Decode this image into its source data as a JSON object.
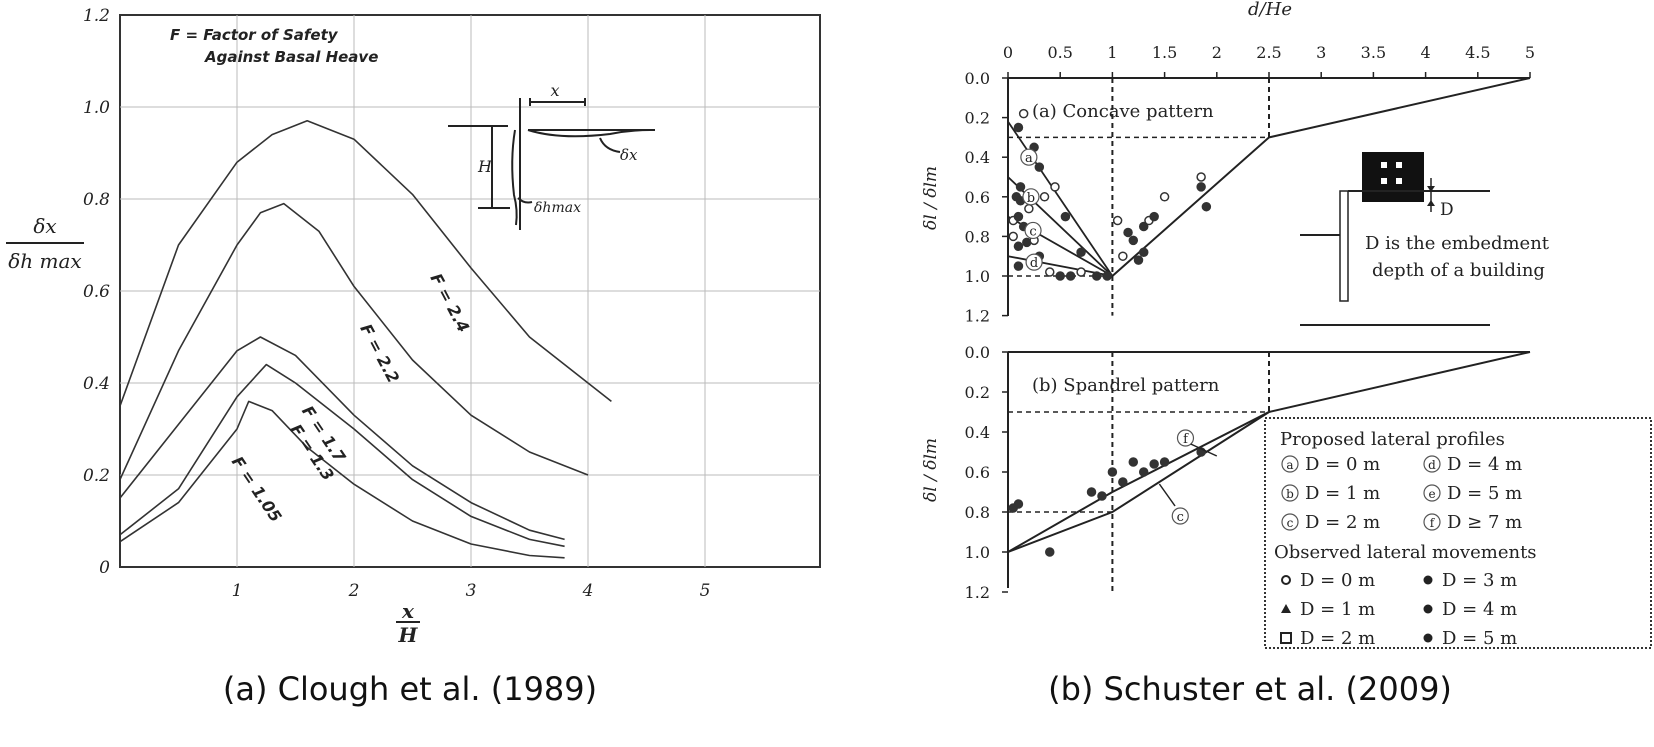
{
  "left_panel": {
    "caption": "(a) Clough et al. (1989)",
    "legend_line1": "F = Factor of Safety",
    "legend_line2": "Against Basal Heave",
    "ylabel_num": "δx",
    "ylabel_den": "δh max",
    "xlabel_num": "x",
    "xlabel_den": "H",
    "inset_x": "x",
    "inset_H": "H",
    "inset_dx": "δx",
    "inset_dhmax": "δhmax",
    "y_ticks": [
      "0",
      "0.2",
      "0.4",
      "0.6",
      "0.8",
      "1.0",
      "1.2"
    ],
    "x_ticks": [
      "1",
      "2",
      "3",
      "4",
      "5"
    ]
  },
  "right_panel": {
    "caption": "(b) Schuster et al. (2009)",
    "top_axis_title": "d/He",
    "top_x_ticks": [
      "0",
      "0.5",
      "1",
      "1.5",
      "2",
      "2.5",
      "3",
      "3.5",
      "4",
      "4.5",
      "5"
    ],
    "y_ticks": [
      "0.0",
      "0.2",
      "0.4",
      "0.6",
      "0.8",
      "1.0",
      "1.2"
    ],
    "ylabel": "δl / δlm",
    "concave_label": "(a) Concave pattern",
    "spandrel_label": "(b) Spandrel pattern",
    "profile_markers": [
      "a",
      "b",
      "c",
      "d"
    ],
    "spandrel_markers": [
      "f",
      "c"
    ],
    "building_label": "D",
    "embed_line1": "D is the embedment",
    "embed_line2": "depth of a building",
    "legend": {
      "proposed_title": "Proposed lateral profiles",
      "proposed": [
        {
          "tag": "a",
          "text": "D = 0 m"
        },
        {
          "tag": "d",
          "text": "D = 4 m"
        },
        {
          "tag": "b",
          "text": "D = 1 m"
        },
        {
          "tag": "e",
          "text": "D = 5 m"
        },
        {
          "tag": "c",
          "text": "D = 2 m"
        },
        {
          "tag": "f",
          "text": "D ≥ 7 m"
        }
      ],
      "observed_title": "Observed lateral movements",
      "observed": [
        "D = 0 m",
        "D = 3 m",
        "D = 1 m",
        "D = 4 m",
        "D = 2 m",
        "D = 5 m"
      ]
    }
  },
  "chart_data": [
    {
      "type": "line",
      "xlabel": "x / H",
      "ylabel": "δx / δh max",
      "xlim": [
        0,
        5
      ],
      "ylim": [
        0,
        1.2
      ],
      "grid": true,
      "series": [
        {
          "name": "F = 2.4",
          "x": [
            0,
            0.5,
            1.0,
            1.3,
            1.6,
            2.0,
            2.5,
            3.0,
            3.5,
            4.0,
            4.2
          ],
          "y": [
            0.35,
            0.7,
            0.88,
            0.94,
            0.97,
            0.93,
            0.81,
            0.65,
            0.5,
            0.4,
            0.36
          ]
        },
        {
          "name": "F = 2.2",
          "x": [
            0,
            0.5,
            1.0,
            1.2,
            1.4,
            1.7,
            2.0,
            2.5,
            3.0,
            3.5,
            4.0
          ],
          "y": [
            0.19,
            0.47,
            0.7,
            0.77,
            0.79,
            0.73,
            0.61,
            0.45,
            0.33,
            0.25,
            0.2
          ]
        },
        {
          "name": "F = 1.7",
          "x": [
            0,
            0.5,
            1.0,
            1.2,
            1.5,
            2.0,
            2.5,
            3.0,
            3.5,
            3.8
          ],
          "y": [
            0.15,
            0.31,
            0.47,
            0.5,
            0.46,
            0.33,
            0.22,
            0.14,
            0.08,
            0.06
          ]
        },
        {
          "name": "F = 1.3",
          "x": [
            0,
            0.5,
            1.0,
            1.25,
            1.5,
            2.0,
            2.5,
            3.0,
            3.5,
            3.8
          ],
          "y": [
            0.07,
            0.17,
            0.37,
            0.44,
            0.4,
            0.3,
            0.19,
            0.11,
            0.06,
            0.045
          ]
        },
        {
          "name": "F = 1.05",
          "x": [
            0,
            0.5,
            1.0,
            1.1,
            1.3,
            1.6,
            2.0,
            2.5,
            3.0,
            3.5,
            3.8
          ],
          "y": [
            0.055,
            0.14,
            0.3,
            0.36,
            0.34,
            0.26,
            0.18,
            0.1,
            0.05,
            0.025,
            0.02
          ]
        }
      ]
    },
    {
      "type": "line",
      "xlabel": "d/He",
      "ylabel": "δl / δlm",
      "xlim": [
        0,
        5
      ],
      "ylim": [
        1.2,
        0
      ],
      "series": [
        {
          "name": "a",
          "x": [
            0,
            1.0
          ],
          "y": [
            0.22,
            1.0
          ]
        },
        {
          "name": "b",
          "x": [
            0,
            1.0
          ],
          "y": [
            0.5,
            1.0
          ]
        },
        {
          "name": "c",
          "x": [
            0,
            1.0
          ],
          "y": [
            0.7,
            1.0
          ]
        },
        {
          "name": "d",
          "x": [
            0,
            1.0
          ],
          "y": [
            0.9,
            1.0
          ]
        },
        {
          "name": "",
          "x": [
            1.0,
            2.5,
            5.0
          ],
          "y": [
            1.0,
            0.3,
            0.0
          ]
        },
        {
          "name": "",
          "x": [
            0,
            1.0,
            2.5
          ],
          "y": [
            0.3,
            0.3,
            0.3
          ]
        },
        {
          "name": "",
          "x": [
            0,
            1.0
          ],
          "y": [
            1.0,
            1.0
          ]
        },
        {
          "name": "f",
          "x": [
            0,
            1.0,
            2.5,
            5.0
          ],
          "y": [
            1.0,
            0.7,
            0.3,
            0.0
          ]
        },
        {
          "name": "c",
          "x": [
            0,
            1.0,
            2.5
          ],
          "y": [
            1.0,
            0.8,
            0.3
          ]
        },
        {
          "name": "",
          "x": [
            0,
            1.0
          ],
          "y": [
            0.8,
            0.8
          ]
        }
      ],
      "observed_points_concave": {
        "x": [
          0.05,
          0.1,
          0.15,
          0.2,
          0.08,
          0.12,
          0.05,
          0.1,
          0.18,
          0.25,
          0.3,
          0.12,
          0.4,
          0.5,
          0.6,
          0.7,
          0.85,
          0.95,
          0.15,
          0.1,
          0.3,
          0.45,
          0.55,
          0.7,
          1.05,
          1.15,
          1.3,
          1.35,
          1.4,
          1.2,
          1.1,
          1.3,
          1.25,
          1.85,
          1.85,
          1.9,
          1.5,
          0.2,
          0.25,
          0.35,
          0.1
        ],
        "y": [
          0.72,
          0.7,
          0.75,
          0.66,
          0.6,
          0.55,
          0.8,
          0.85,
          0.83,
          0.82,
          0.9,
          0.62,
          0.98,
          1.0,
          1.0,
          0.98,
          1.0,
          1.0,
          0.18,
          0.25,
          0.45,
          0.55,
          0.7,
          0.88,
          0.72,
          0.78,
          0.75,
          0.72,
          0.7,
          0.82,
          0.9,
          0.88,
          0.92,
          0.5,
          0.55,
          0.65,
          0.6,
          0.4,
          0.35,
          0.6,
          0.95
        ]
      },
      "observed_points_spandrel": {
        "x": [
          0.05,
          0.1,
          0.4,
          0.8,
          1.0,
          1.1,
          1.2,
          1.4,
          1.5,
          1.85,
          0.9,
          1.3
        ],
        "y": [
          0.78,
          0.76,
          1.0,
          0.7,
          0.6,
          0.65,
          0.55,
          0.56,
          0.55,
          0.5,
          0.72,
          0.6
        ]
      }
    }
  ]
}
